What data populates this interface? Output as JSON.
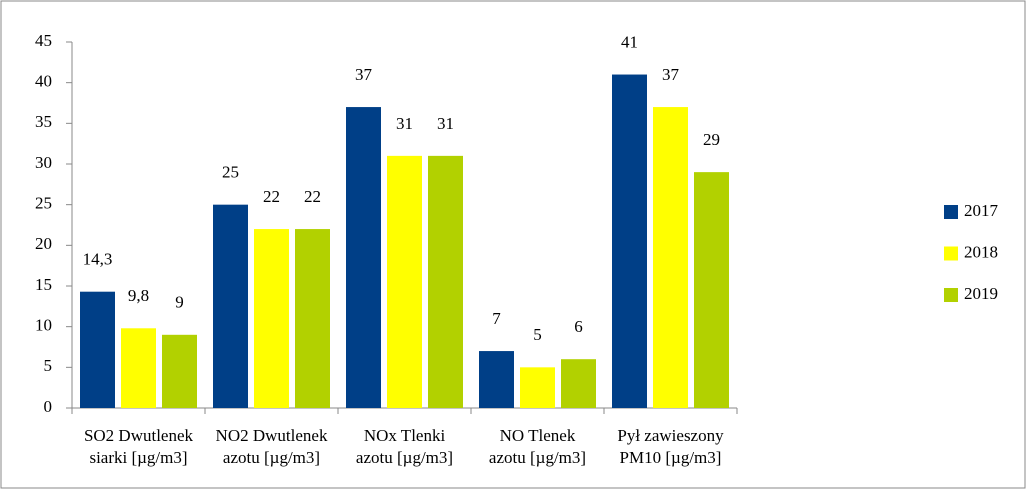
{
  "chart_data": {
    "type": "bar",
    "categories": [
      "SO2 Dwutlenek\nsiarki [µg/m3]",
      "NO2 Dwutlenek\nazotu [µg/m3]",
      "NOx Tlenki\nazotu [µg/m3]",
      "NO Tlenek\nazotu [µg/m3]",
      "Pył zawieszony\nPM10 [µg/m3]"
    ],
    "series": [
      {
        "name": "2017",
        "color": "#003f87",
        "values": [
          14.3,
          25,
          37,
          7,
          41
        ],
        "value_labels": [
          "14,3",
          "25",
          "37",
          "7",
          "41"
        ]
      },
      {
        "name": "2018",
        "color": "#ffff00",
        "values": [
          9.8,
          22,
          31,
          5,
          37
        ],
        "value_labels": [
          "9,8",
          "22",
          "31",
          "5",
          "37"
        ]
      },
      {
        "name": "2019",
        "color": "#b2d100",
        "values": [
          9,
          22,
          31,
          6,
          29
        ],
        "value_labels": [
          "9",
          "22",
          "31",
          "6",
          "29"
        ]
      }
    ],
    "ylim": [
      0,
      45
    ],
    "yticks": [
      0,
      5,
      10,
      15,
      20,
      25,
      30,
      35,
      40,
      45
    ],
    "grid": false,
    "legend": "right"
  }
}
